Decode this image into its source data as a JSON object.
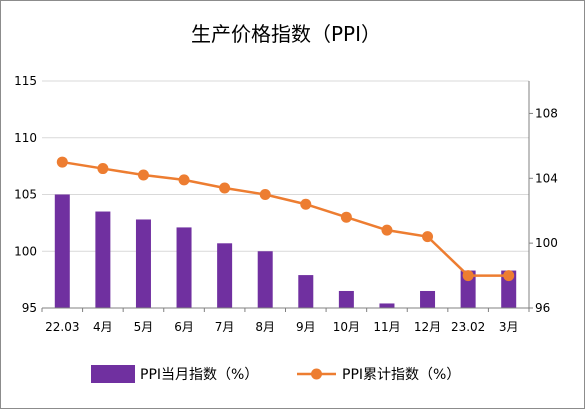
{
  "chart_data": {
    "type": "bar",
    "title": "生产价格指数（PPI）",
    "categories": [
      "22.03",
      "4月",
      "5月",
      "6月",
      "7月",
      "8月",
      "9月",
      "10月",
      "11月",
      "12月",
      "23.02",
      "3月"
    ],
    "series": [
      {
        "name": "PPI当月指数（%）",
        "type": "bar",
        "axis": "left",
        "color": "#7030A0",
        "values": [
          105.0,
          103.5,
          102.8,
          102.1,
          100.7,
          100.0,
          97.9,
          96.5,
          95.4,
          96.5,
          98.3,
          98.3
        ]
      },
      {
        "name": "PPI累计指数（%）",
        "type": "line",
        "axis": "right",
        "color": "#ED7D31",
        "values": [
          105.0,
          104.6,
          104.2,
          103.9,
          103.4,
          103.0,
          102.4,
          101.6,
          100.8,
          100.4,
          98.0,
          98.0
        ]
      }
    ],
    "y_left": {
      "min": 95,
      "max": 115,
      "ticks": [
        95,
        100,
        105,
        110,
        115
      ]
    },
    "y_right": {
      "min": 96,
      "max": 110,
      "ticks": [
        96,
        100,
        104,
        108
      ]
    },
    "grid": true,
    "legend_position": "bottom"
  }
}
